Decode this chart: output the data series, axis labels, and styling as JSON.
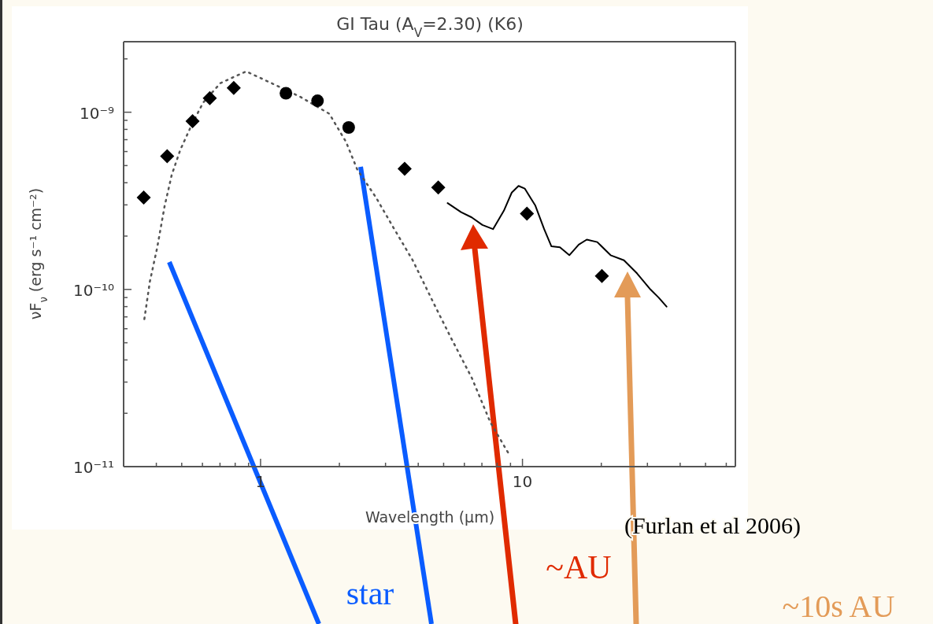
{
  "chart_data": {
    "type": "scatter",
    "title": "GI Tau (A$_{V}$=2.30) (K6)",
    "xlabel": "Wavelength (μm)",
    "ylabel": "νF$_{ν}$ (erg s⁻¹ cm⁻²)",
    "log": "xy",
    "grid": false,
    "xlim": [
      0.3,
      65
    ],
    "ylim": [
      1e-11,
      2.5e-09
    ],
    "xticks": [
      {
        "value": 0.3,
        "label": null
      },
      {
        "value": 0.4,
        "label": null
      },
      {
        "value": 0.5,
        "label": null
      },
      {
        "value": 0.6,
        "label": null
      },
      {
        "value": 0.7,
        "label": null
      },
      {
        "value": 0.8,
        "label": null
      },
      {
        "value": 0.9,
        "label": null
      },
      1,
      {
        "value": 2,
        "label": null
      },
      {
        "value": 3,
        "label": null
      },
      {
        "value": 4,
        "label": null
      },
      {
        "value": 5,
        "label": null
      },
      {
        "value": 6,
        "label": null
      },
      {
        "value": 7,
        "label": null
      },
      {
        "value": 8,
        "label": null
      },
      {
        "value": 9,
        "label": null
      },
      10,
      {
        "value": 20,
        "label": null
      },
      {
        "value": 30,
        "label": null
      },
      {
        "value": 40,
        "label": null
      },
      {
        "value": 50,
        "label": null
      },
      {
        "value": 60,
        "label": null
      }
    ],
    "yticks": [
      {
        "value": 1e-11,
        "label": "10⁻¹¹"
      },
      {
        "value": 2e-11,
        "label": null
      },
      {
        "value": 3e-11,
        "label": null
      },
      {
        "value": 4e-11,
        "label": null
      },
      {
        "value": 5e-11,
        "label": null
      },
      {
        "value": 6e-11,
        "label": null
      },
      {
        "value": 7e-11,
        "label": null
      },
      {
        "value": 8e-11,
        "label": null
      },
      {
        "value": 9e-11,
        "label": null
      },
      {
        "value": 1e-10,
        "label": "10⁻¹⁰"
      },
      {
        "value": 2e-10,
        "label": null
      },
      {
        "value": 3e-10,
        "label": null
      },
      {
        "value": 4e-10,
        "label": null
      },
      {
        "value": 5e-10,
        "label": null
      },
      {
        "value": 6e-10,
        "label": null
      },
      {
        "value": 7e-10,
        "label": null
      },
      {
        "value": 8e-10,
        "label": null
      },
      {
        "value": 9e-10,
        "label": null
      },
      {
        "value": 1e-09,
        "label": "10⁻⁹"
      },
      {
        "value": 2e-09,
        "label": null
      }
    ],
    "series": [
      {
        "type": "scatter",
        "marker": "diamond",
        "color": "#000000",
        "x": [
          0.358,
          0.44,
          0.55,
          0.64,
          0.79,
          3.55,
          4.77,
          10.4,
          20.1
        ],
        "values": [
          3.3e-10,
          5.65e-10,
          8.9e-10,
          1.2e-09,
          1.37e-09,
          4.8e-10,
          3.76e-10,
          2.68e-10,
          1.19e-10
        ]
      },
      {
        "type": "scatter",
        "marker": "circle",
        "color": "#000000",
        "x": [
          1.25,
          1.65,
          2.17
        ],
        "values": [
          1.28e-09,
          1.16e-09,
          8.2e-10
        ]
      },
      {
        "type": "line",
        "line_style": "solid",
        "color": "#000000",
        "x": [
          5.18,
          5.83,
          6.4,
          7.03,
          7.72,
          8.49,
          9.1,
          9.66,
          10.2,
          11.2,
          12.1,
          12.9,
          13.9,
          15.1,
          16.4,
          17.6,
          19.3,
          21.7,
          24.4,
          27.4,
          30.8,
          33.1,
          35.5
        ],
        "values": [
          3.07e-10,
          2.73e-10,
          2.55e-10,
          2.31e-10,
          2.19e-10,
          2.78e-10,
          3.52e-10,
          3.84e-10,
          3.71e-10,
          2.97e-10,
          2.19e-10,
          1.75e-10,
          1.73e-10,
          1.56e-10,
          1.79e-10,
          1.91e-10,
          1.85e-10,
          1.56e-10,
          1.46e-10,
          1.23e-10,
          1e-10,
          9e-11,
          8e-11
        ]
      },
      {
        "type": "line",
        "line_style": "dotted",
        "color": "#555555",
        "x": [
          0.36,
          0.378,
          0.403,
          0.43,
          0.458,
          0.494,
          0.546,
          0.603,
          0.703,
          0.881,
          1.1,
          1.42,
          1.83,
          2.12,
          2.34,
          2.76,
          3.24,
          3.81,
          4.61,
          5.31,
          6.41,
          7.55,
          8.87
        ],
        "values": [
          6.8e-11,
          1.11e-10,
          1.72e-10,
          2.94e-10,
          4.43e-10,
          6.14e-10,
          8.5e-10,
          1.13e-09,
          1.46e-09,
          1.7e-09,
          1.46e-09,
          1.22e-09,
          9.8e-10,
          6.8e-10,
          4.75e-10,
          3.3e-10,
          2.19e-10,
          1.46e-10,
          8.2e-11,
          5.4e-11,
          3.16e-11,
          1.77e-11,
          1.18e-11
        ]
      }
    ],
    "annotations": [
      "(Furlan et al 2006)",
      "star",
      "~AU",
      "~10s AU"
    ]
  }
}
